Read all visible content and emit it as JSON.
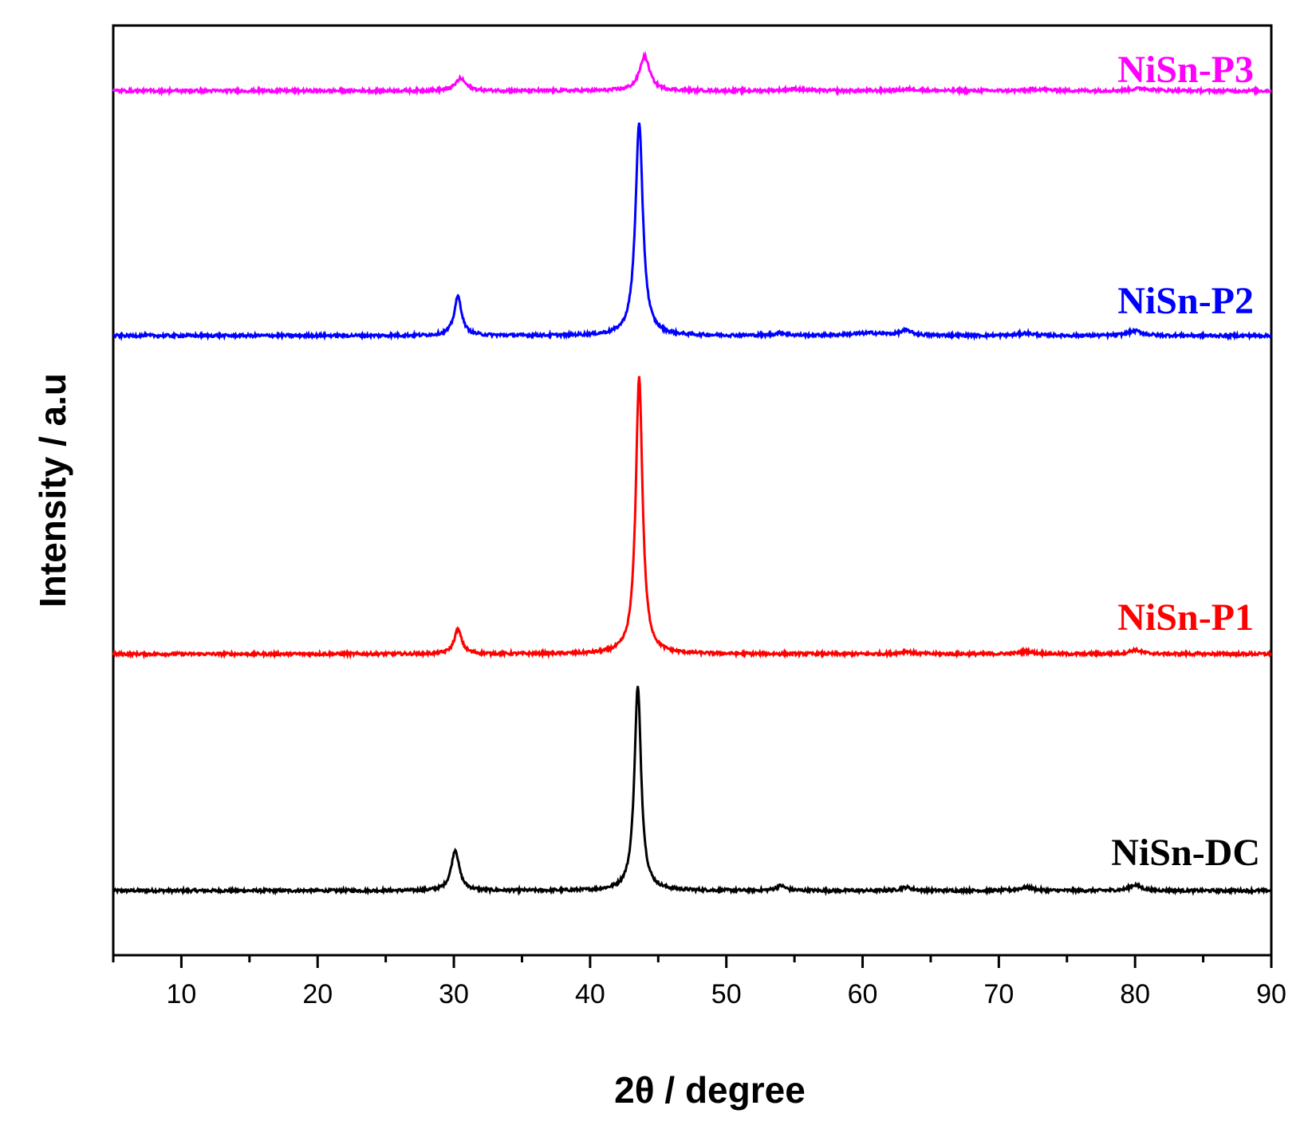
{
  "chart_data": {
    "type": "line",
    "title": "",
    "xlabel": "2θ / degree",
    "ylabel": "Intensity / a.u",
    "xlim": [
      5,
      90
    ],
    "ylim": [
      0,
      100
    ],
    "xticks": [
      10,
      20,
      30,
      40,
      50,
      60,
      70,
      80,
      90
    ],
    "yticks_shown": false,
    "series": [
      {
        "name": "NiSn-DC",
        "color": "#000000",
        "baseline": 4,
        "peaks": [
          {
            "x": 30.1,
            "height": 5.0,
            "width": 0.35
          },
          {
            "x": 43.5,
            "height": 25.0,
            "width": 0.3
          },
          {
            "x": 54.0,
            "height": 0.6,
            "width": 0.4
          },
          {
            "x": 63.2,
            "height": 0.4,
            "width": 0.5
          },
          {
            "x": 72.0,
            "height": 0.4,
            "width": 0.6
          },
          {
            "x": 80.0,
            "height": 0.7,
            "width": 0.5
          }
        ]
      },
      {
        "name": "NiSn-P1",
        "color": "#ff0000",
        "baseline": 33,
        "peaks": [
          {
            "x": 30.3,
            "height": 3.0,
            "width": 0.33
          },
          {
            "x": 43.6,
            "height": 34.0,
            "width": 0.3
          },
          {
            "x": 63.2,
            "height": 0.3,
            "width": 0.5
          },
          {
            "x": 72.0,
            "height": 0.3,
            "width": 0.6
          },
          {
            "x": 80.0,
            "height": 0.5,
            "width": 0.5
          }
        ]
      },
      {
        "name": "NiSn-P2",
        "color": "#0000ff",
        "baseline": 72,
        "peaks": [
          {
            "x": 30.3,
            "height": 4.8,
            "width": 0.33
          },
          {
            "x": 43.6,
            "height": 26.0,
            "width": 0.33
          },
          {
            "x": 54.0,
            "height": 0.3,
            "width": 0.5
          },
          {
            "x": 60.5,
            "height": 0.3,
            "width": 1.5
          },
          {
            "x": 63.2,
            "height": 0.6,
            "width": 0.5
          },
          {
            "x": 72.0,
            "height": 0.3,
            "width": 0.6
          },
          {
            "x": 80.0,
            "height": 0.6,
            "width": 0.6
          }
        ]
      },
      {
        "name": "NiSn-P3",
        "color": "#ff00ff",
        "baseline": 102,
        "peaks": [
          {
            "x": 30.5,
            "height": 1.5,
            "width": 0.45
          },
          {
            "x": 44.0,
            "height": 4.2,
            "width": 0.45
          },
          {
            "x": 55.0,
            "height": 0.2,
            "width": 0.8
          },
          {
            "x": 63.5,
            "height": 0.2,
            "width": 0.8
          },
          {
            "x": 73.0,
            "height": 0.2,
            "width": 0.8
          },
          {
            "x": 80.5,
            "height": 0.3,
            "width": 0.8
          }
        ]
      }
    ]
  }
}
